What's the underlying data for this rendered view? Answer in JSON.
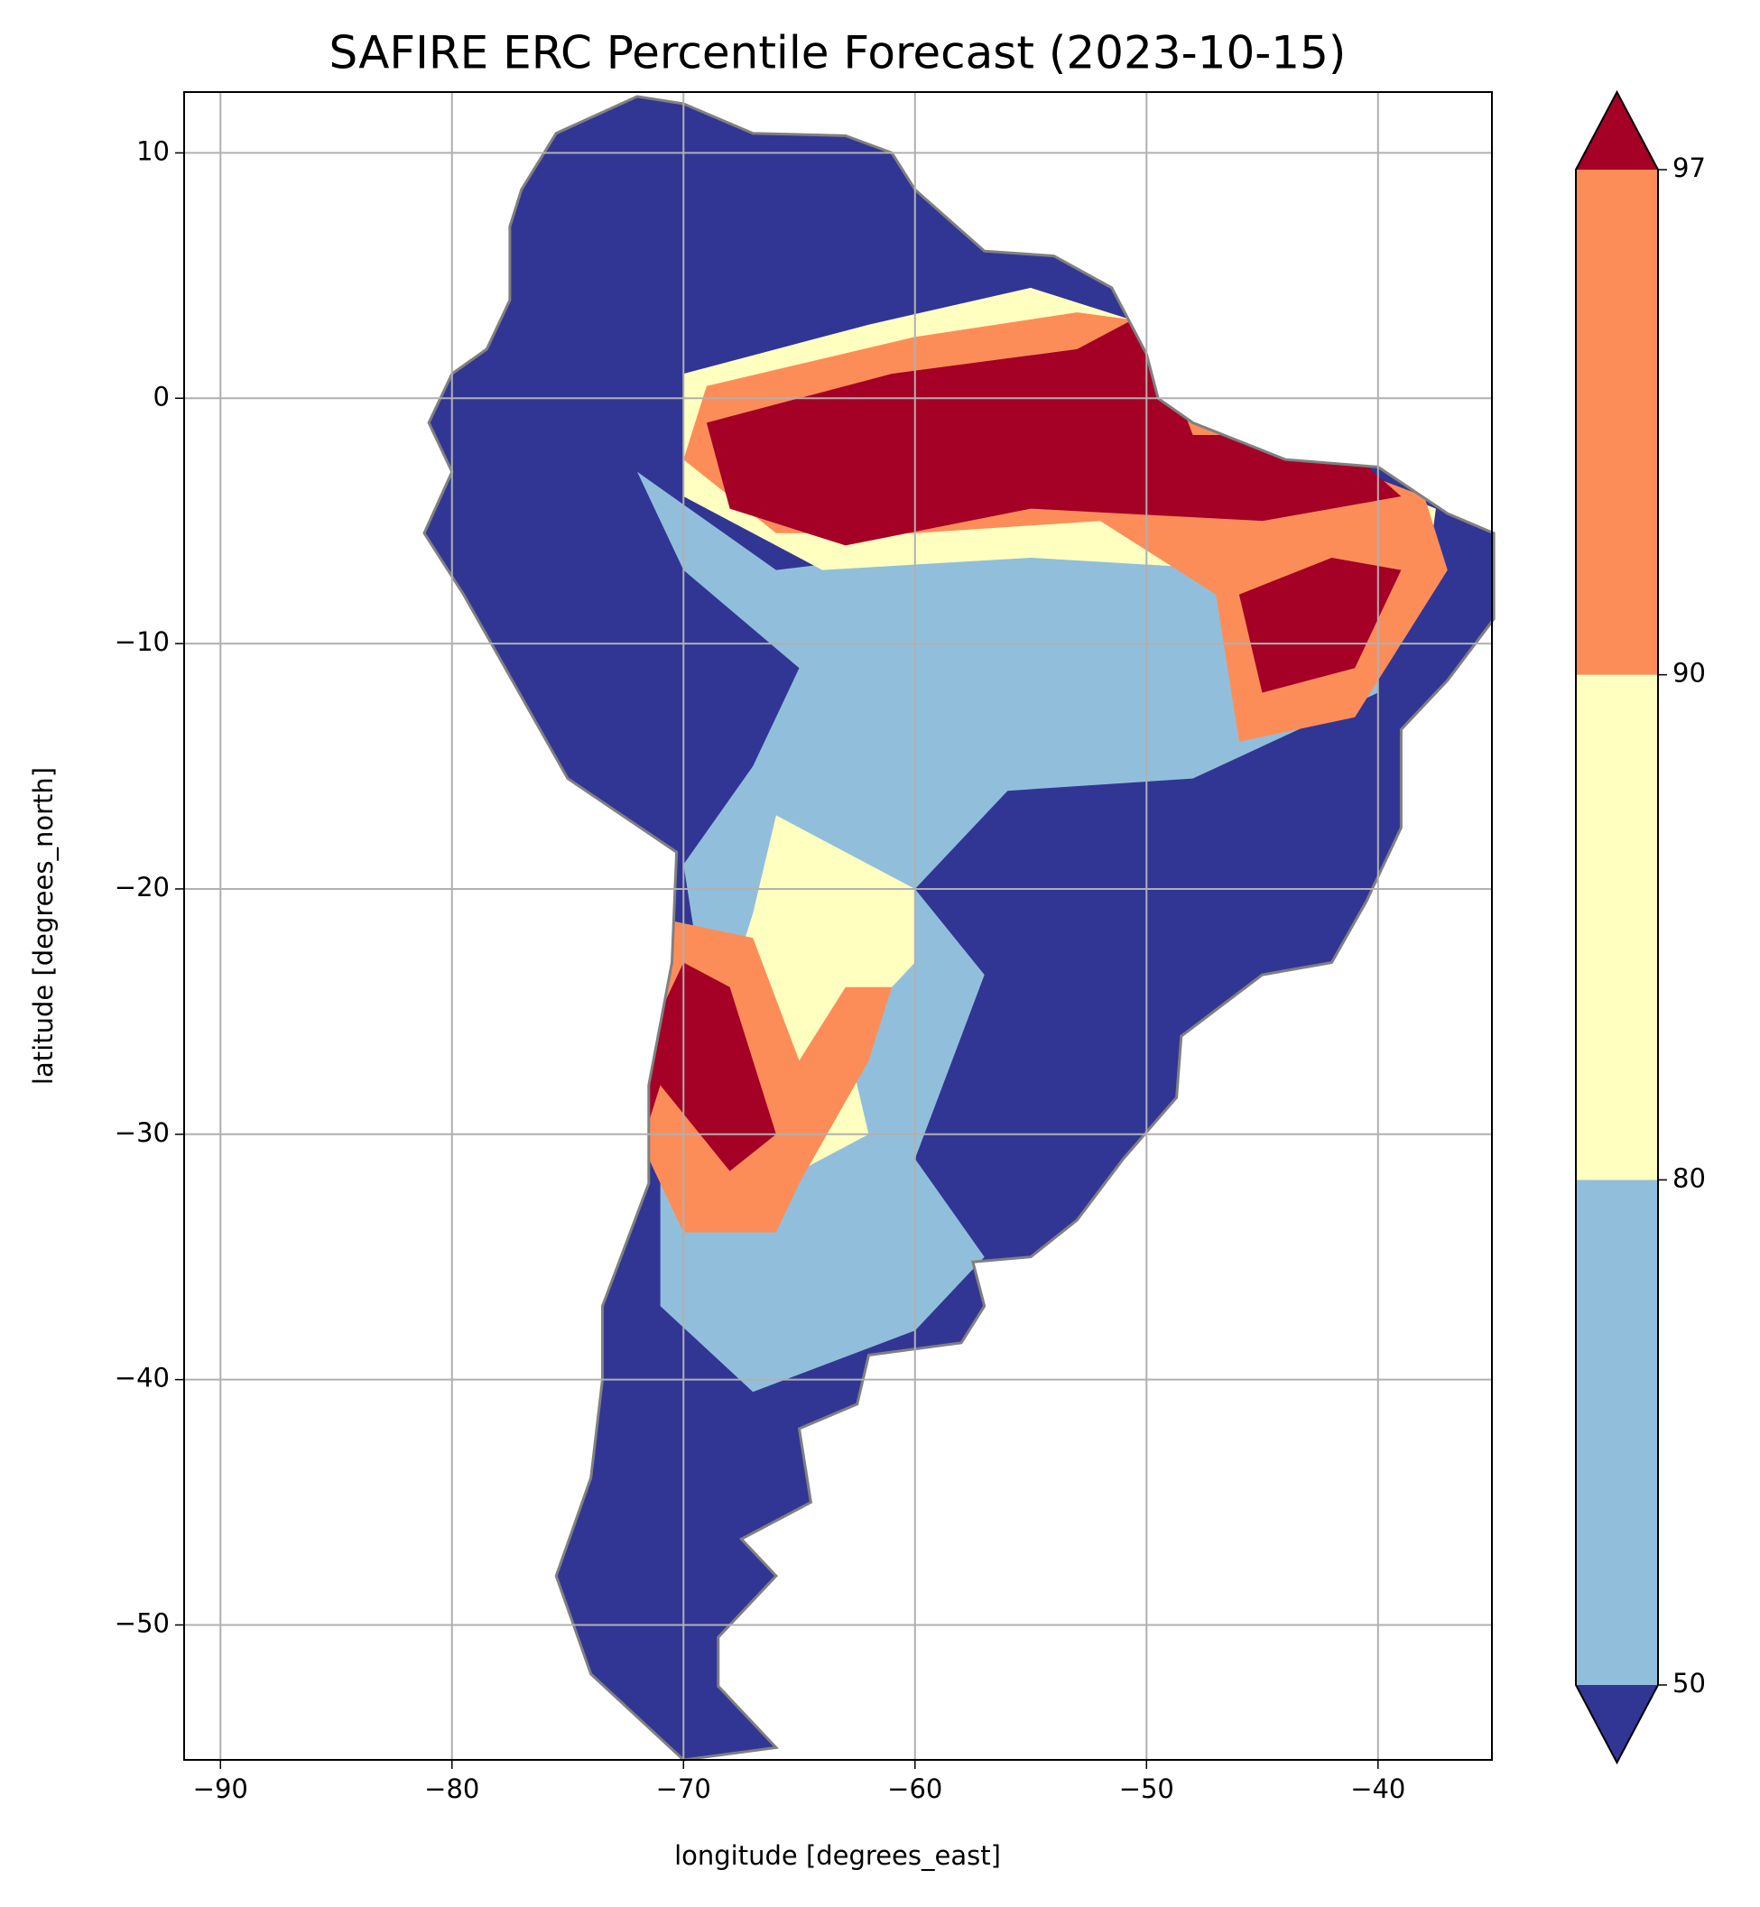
{
  "chart_data": {
    "type": "map",
    "title": "SAFIRE ERC Percentile Forecast (2023-10-15)",
    "x_label": "longitude [degrees_east]",
    "y_label": "latitude [degrees_north]",
    "xlim": [
      -91.57,
      -35.08
    ],
    "ylim": [
      -55.5,
      12.48
    ],
    "xticks": [
      {
        "value": -90,
        "label": "−90"
      },
      {
        "value": -80,
        "label": "−80"
      },
      {
        "value": -70,
        "label": "−70"
      },
      {
        "value": -60,
        "label": "−60"
      },
      {
        "value": -50,
        "label": "−50"
      },
      {
        "value": -40,
        "label": "−40"
      }
    ],
    "yticks": [
      10,
      0,
      {
        "value": -10,
        "label": "−10"
      },
      {
        "value": -20,
        "label": "−20"
      },
      {
        "value": -30,
        "label": "−30"
      },
      {
        "value": -40,
        "label": "−40"
      },
      {
        "value": -50,
        "label": "−50"
      }
    ],
    "grid": true,
    "colorbar": {
      "levels": [
        50,
        80,
        90,
        97
      ],
      "colors": [
        "#313695",
        "#91bfdb",
        "#ffffbf",
        "#fc8d59",
        "#a50026"
      ],
      "extend": "both"
    }
  }
}
